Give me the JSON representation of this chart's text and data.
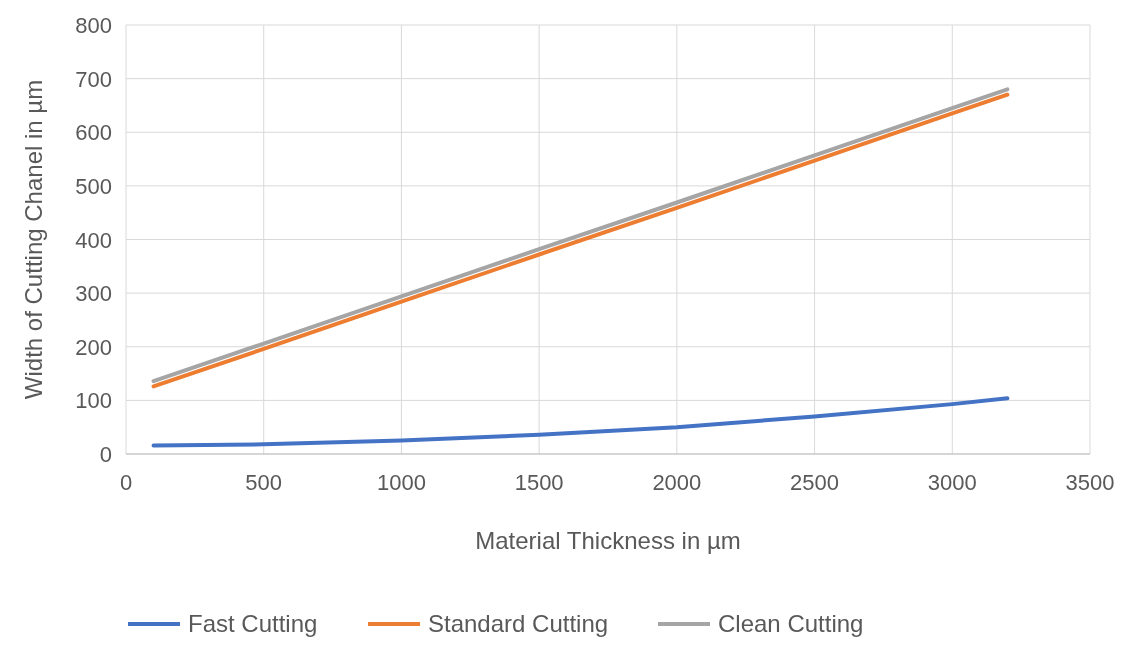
{
  "chart_data": {
    "type": "line",
    "xlabel": "Material Thickness in µm",
    "ylabel": "Width of Cutting Chanel in µm",
    "x": [
      100,
      500,
      1000,
      1500,
      2000,
      2500,
      3000,
      3200
    ],
    "series": [
      {
        "name": "Fast Cutting",
        "color": "#4472c4",
        "values": [
          16,
          18,
          25,
          36,
          50,
          70,
          93,
          104
        ]
      },
      {
        "name": "Standard Cutting",
        "color": "#ed7d31",
        "values": [
          126,
          196,
          284,
          372,
          459,
          547,
          635,
          670
        ]
      },
      {
        "name": "Clean Cutting",
        "color": "#a5a5a5",
        "values": [
          136,
          206,
          294,
          382,
          469,
          557,
          645,
          680
        ]
      }
    ],
    "xlim": [
      0,
      3500
    ],
    "xticks": [
      0,
      500,
      1000,
      1500,
      2000,
      2500,
      3000,
      3500
    ],
    "ylim": [
      0,
      800
    ],
    "yticks": [
      0,
      100,
      200,
      300,
      400,
      500,
      600,
      700,
      800
    ],
    "grid": true,
    "legend": "bottom",
    "marker": "none",
    "line_style": "solid"
  }
}
